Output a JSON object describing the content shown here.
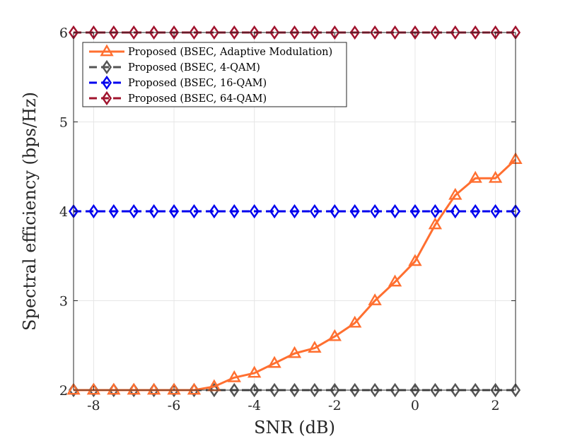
{
  "chart_data": {
    "type": "line",
    "xlabel": "SNR (dB)",
    "ylabel": "Spectral efficiency (bps/Hz)",
    "xlim": [
      -8.5,
      2.5
    ],
    "ylim": [
      2,
      6
    ],
    "xticks": [
      -8,
      -6,
      -4,
      -2,
      0,
      2
    ],
    "xtick_labels": [
      "-8",
      "-6",
      "-4",
      "-2",
      "0",
      "2"
    ],
    "yticks": [
      2,
      3,
      4,
      5,
      6
    ],
    "ytick_labels": [
      "2",
      "3",
      "4",
      "5",
      "6"
    ],
    "grid": true,
    "legend_position": "top-left",
    "x": [
      -8.5,
      -8,
      -7.5,
      -7,
      -6.5,
      -6,
      -5.5,
      -5,
      -4.5,
      -4,
      -3.5,
      -3,
      -2.5,
      -2,
      -1.5,
      -1,
      -0.5,
      0,
      0.5,
      1,
      1.5,
      2,
      2.5
    ],
    "series": [
      {
        "name": "Proposed (BSEC, Adaptive Modulation)",
        "color": "#ff6f30",
        "marker": "triangle",
        "dash": "solid",
        "values": [
          2,
          2,
          2,
          2,
          2,
          2,
          2,
          2.04,
          2.14,
          2.19,
          2.3,
          2.41,
          2.47,
          2.6,
          2.75,
          3.0,
          3.21,
          3.44,
          3.85,
          4.18,
          4.37,
          4.37,
          4.58
        ]
      },
      {
        "name": "Proposed (BSEC, 4-QAM)",
        "color": "#545454",
        "marker": "diamond",
        "dash": "dashed",
        "values": [
          2,
          2,
          2,
          2,
          2,
          2,
          2,
          2,
          2,
          2,
          2,
          2,
          2,
          2,
          2,
          2,
          2,
          2,
          2,
          2,
          2,
          2,
          2
        ]
      },
      {
        "name": "Proposed (BSEC, 16-QAM)",
        "color": "#0000ee",
        "marker": "diamond",
        "dash": "dashed",
        "values": [
          4,
          4,
          4,
          4,
          4,
          4,
          4,
          4,
          4,
          4,
          4,
          4,
          4,
          4,
          4,
          4,
          4,
          4,
          4,
          4,
          4,
          4,
          4
        ]
      },
      {
        "name": "Proposed (BSEC, 64-QAM)",
        "color": "#a0142e",
        "marker": "diamond",
        "dash": "dashed",
        "values": [
          6,
          6,
          6,
          6,
          6,
          6,
          6,
          6,
          6,
          6,
          6,
          6,
          6,
          6,
          6,
          6,
          6,
          6,
          6,
          6,
          6,
          6,
          6
        ]
      }
    ]
  }
}
